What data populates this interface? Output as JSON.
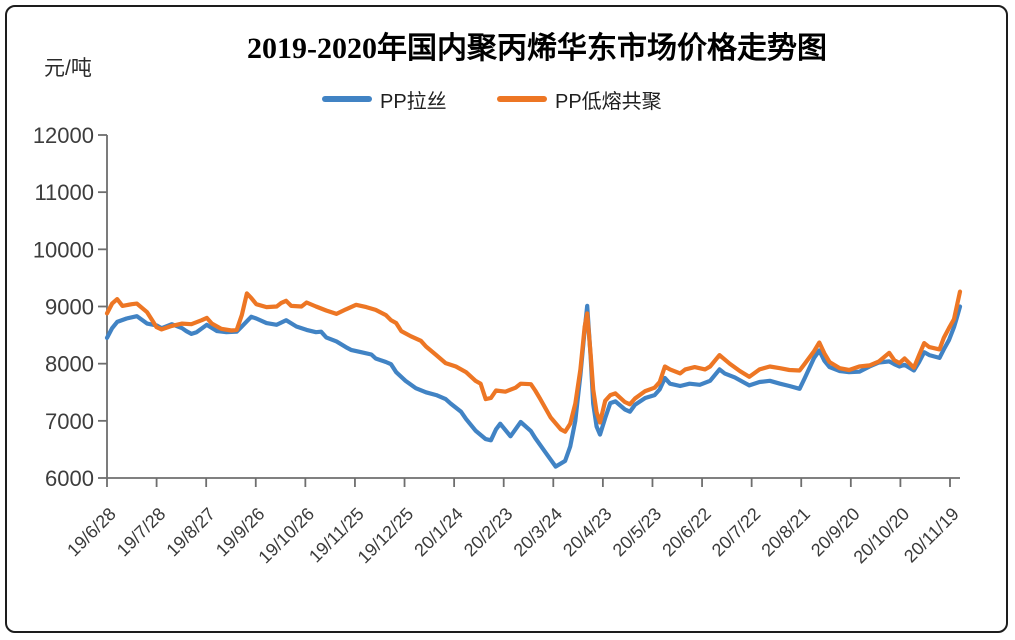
{
  "title": "2019-2020年国内聚丙烯华东市场价格走势图",
  "y_axis_unit": "元/吨",
  "colors": {
    "axis": "#6e6e6e",
    "pp_lasi": "#4183C4",
    "pp_dirong": "#ED7624"
  },
  "chart_data": {
    "type": "line",
    "title": "2019-2020年国内聚丙烯华东市场价格走势图",
    "ylabel": "元/吨",
    "ylim": [
      6000,
      12000
    ],
    "y_ticks": [
      6000,
      7000,
      8000,
      9000,
      10000,
      11000,
      12000
    ],
    "grid": false,
    "legend_position": "top",
    "x_tick_labels": [
      "19/6/28",
      "19/7/28",
      "19/8/27",
      "19/9/26",
      "19/10/26",
      "19/11/25",
      "19/12/25",
      "20/1/24",
      "20/2/23",
      "20/3/24",
      "20/4/23",
      "20/5/23",
      "20/6/22",
      "20/7/22",
      "20/8/21",
      "20/9/20",
      "20/10/20",
      "20/11/19"
    ],
    "series": [
      {
        "name": "PP拉丝",
        "color": "#4183C4",
        "points": [
          [
            0.0,
            8450
          ],
          [
            0.006,
            8620
          ],
          [
            0.012,
            8730
          ],
          [
            0.023,
            8790
          ],
          [
            0.035,
            8830
          ],
          [
            0.047,
            8700
          ],
          [
            0.058,
            8670
          ],
          [
            0.064,
            8620
          ],
          [
            0.076,
            8690
          ],
          [
            0.088,
            8620
          ],
          [
            0.093,
            8570
          ],
          [
            0.099,
            8520
          ],
          [
            0.105,
            8550
          ],
          [
            0.117,
            8680
          ],
          [
            0.129,
            8570
          ],
          [
            0.14,
            8550
          ],
          [
            0.152,
            8560
          ],
          [
            0.158,
            8650
          ],
          [
            0.169,
            8820
          ],
          [
            0.175,
            8790
          ],
          [
            0.187,
            8710
          ],
          [
            0.199,
            8680
          ],
          [
            0.21,
            8760
          ],
          [
            0.222,
            8650
          ],
          [
            0.234,
            8590
          ],
          [
            0.245,
            8550
          ],
          [
            0.251,
            8560
          ],
          [
            0.257,
            8460
          ],
          [
            0.269,
            8390
          ],
          [
            0.28,
            8290
          ],
          [
            0.286,
            8240
          ],
          [
            0.298,
            8200
          ],
          [
            0.31,
            8160
          ],
          [
            0.315,
            8090
          ],
          [
            0.327,
            8030
          ],
          [
            0.333,
            7990
          ],
          [
            0.339,
            7850
          ],
          [
            0.35,
            7700
          ],
          [
            0.362,
            7570
          ],
          [
            0.374,
            7500
          ],
          [
            0.386,
            7450
          ],
          [
            0.397,
            7380
          ],
          [
            0.403,
            7300
          ],
          [
            0.415,
            7160
          ],
          [
            0.421,
            7030
          ],
          [
            0.432,
            6830
          ],
          [
            0.444,
            6680
          ],
          [
            0.45,
            6660
          ],
          [
            0.456,
            6850
          ],
          [
            0.461,
            6950
          ],
          [
            0.473,
            6730
          ],
          [
            0.485,
            6980
          ],
          [
            0.497,
            6820
          ],
          [
            0.502,
            6700
          ],
          [
            0.514,
            6450
          ],
          [
            0.526,
            6200
          ],
          [
            0.537,
            6300
          ],
          [
            0.543,
            6550
          ],
          [
            0.549,
            7000
          ],
          [
            0.555,
            7800
          ],
          [
            0.56,
            8600
          ],
          [
            0.563,
            9010
          ],
          [
            0.567,
            8100
          ],
          [
            0.57,
            7300
          ],
          [
            0.574,
            6900
          ],
          [
            0.578,
            6760
          ],
          [
            0.584,
            7050
          ],
          [
            0.59,
            7310
          ],
          [
            0.596,
            7340
          ],
          [
            0.607,
            7200
          ],
          [
            0.613,
            7160
          ],
          [
            0.619,
            7280
          ],
          [
            0.631,
            7400
          ],
          [
            0.642,
            7450
          ],
          [
            0.648,
            7550
          ],
          [
            0.654,
            7750
          ],
          [
            0.66,
            7650
          ],
          [
            0.672,
            7610
          ],
          [
            0.683,
            7650
          ],
          [
            0.695,
            7630
          ],
          [
            0.707,
            7700
          ],
          [
            0.718,
            7900
          ],
          [
            0.724,
            7830
          ],
          [
            0.736,
            7760
          ],
          [
            0.748,
            7660
          ],
          [
            0.753,
            7620
          ],
          [
            0.765,
            7680
          ],
          [
            0.777,
            7700
          ],
          [
            0.789,
            7650
          ],
          [
            0.8,
            7610
          ],
          [
            0.812,
            7560
          ],
          [
            0.818,
            7750
          ],
          [
            0.829,
            8100
          ],
          [
            0.835,
            8230
          ],
          [
            0.841,
            8050
          ],
          [
            0.847,
            7940
          ],
          [
            0.859,
            7870
          ],
          [
            0.87,
            7850
          ],
          [
            0.882,
            7860
          ],
          [
            0.894,
            7950
          ],
          [
            0.905,
            8020
          ],
          [
            0.917,
            8040
          ],
          [
            0.923,
            7990
          ],
          [
            0.929,
            7950
          ],
          [
            0.935,
            7980
          ],
          [
            0.946,
            7880
          ],
          [
            0.952,
            8030
          ],
          [
            0.958,
            8200
          ],
          [
            0.964,
            8150
          ],
          [
            0.976,
            8100
          ],
          [
            0.981,
            8250
          ],
          [
            0.987,
            8410
          ],
          [
            0.993,
            8640
          ],
          [
            0.996,
            8790
          ],
          [
            1.0,
            9000
          ]
        ]
      },
      {
        "name": "PP低熔共聚",
        "color": "#ED7624",
        "points": [
          [
            0.0,
            8880
          ],
          [
            0.006,
            9050
          ],
          [
            0.012,
            9130
          ],
          [
            0.018,
            9010
          ],
          [
            0.029,
            9040
          ],
          [
            0.035,
            9050
          ],
          [
            0.047,
            8900
          ],
          [
            0.053,
            8760
          ],
          [
            0.058,
            8640
          ],
          [
            0.064,
            8600
          ],
          [
            0.076,
            8660
          ],
          [
            0.088,
            8700
          ],
          [
            0.099,
            8690
          ],
          [
            0.111,
            8760
          ],
          [
            0.117,
            8800
          ],
          [
            0.123,
            8700
          ],
          [
            0.134,
            8610
          ],
          [
            0.146,
            8580
          ],
          [
            0.152,
            8590
          ],
          [
            0.158,
            8850
          ],
          [
            0.164,
            9230
          ],
          [
            0.169,
            9150
          ],
          [
            0.175,
            9040
          ],
          [
            0.187,
            8990
          ],
          [
            0.199,
            9000
          ],
          [
            0.204,
            9060
          ],
          [
            0.21,
            9100
          ],
          [
            0.216,
            9010
          ],
          [
            0.228,
            9000
          ],
          [
            0.234,
            9070
          ],
          [
            0.245,
            9000
          ],
          [
            0.257,
            8930
          ],
          [
            0.269,
            8870
          ],
          [
            0.28,
            8950
          ],
          [
            0.292,
            9030
          ],
          [
            0.304,
            8990
          ],
          [
            0.315,
            8940
          ],
          [
            0.327,
            8850
          ],
          [
            0.333,
            8760
          ],
          [
            0.339,
            8710
          ],
          [
            0.345,
            8570
          ],
          [
            0.356,
            8480
          ],
          [
            0.368,
            8400
          ],
          [
            0.374,
            8300
          ],
          [
            0.386,
            8150
          ],
          [
            0.397,
            8010
          ],
          [
            0.409,
            7950
          ],
          [
            0.421,
            7850
          ],
          [
            0.432,
            7700
          ],
          [
            0.438,
            7650
          ],
          [
            0.444,
            7380
          ],
          [
            0.45,
            7400
          ],
          [
            0.456,
            7530
          ],
          [
            0.467,
            7510
          ],
          [
            0.479,
            7580
          ],
          [
            0.485,
            7650
          ],
          [
            0.497,
            7640
          ],
          [
            0.502,
            7530
          ],
          [
            0.508,
            7380
          ],
          [
            0.52,
            7060
          ],
          [
            0.532,
            6850
          ],
          [
            0.537,
            6810
          ],
          [
            0.543,
            6950
          ],
          [
            0.549,
            7300
          ],
          [
            0.555,
            7900
          ],
          [
            0.56,
            8650
          ],
          [
            0.563,
            8880
          ],
          [
            0.567,
            8150
          ],
          [
            0.57,
            7550
          ],
          [
            0.574,
            7150
          ],
          [
            0.578,
            6970
          ],
          [
            0.584,
            7350
          ],
          [
            0.59,
            7450
          ],
          [
            0.596,
            7480
          ],
          [
            0.607,
            7330
          ],
          [
            0.613,
            7290
          ],
          [
            0.619,
            7390
          ],
          [
            0.631,
            7520
          ],
          [
            0.642,
            7580
          ],
          [
            0.648,
            7680
          ],
          [
            0.654,
            7950
          ],
          [
            0.66,
            7900
          ],
          [
            0.672,
            7830
          ],
          [
            0.678,
            7900
          ],
          [
            0.689,
            7940
          ],
          [
            0.701,
            7900
          ],
          [
            0.707,
            7950
          ],
          [
            0.718,
            8150
          ],
          [
            0.73,
            8000
          ],
          [
            0.742,
            7870
          ],
          [
            0.753,
            7770
          ],
          [
            0.765,
            7900
          ],
          [
            0.777,
            7950
          ],
          [
            0.789,
            7920
          ],
          [
            0.8,
            7890
          ],
          [
            0.812,
            7880
          ],
          [
            0.818,
            8000
          ],
          [
            0.829,
            8220
          ],
          [
            0.835,
            8370
          ],
          [
            0.841,
            8180
          ],
          [
            0.847,
            8030
          ],
          [
            0.859,
            7920
          ],
          [
            0.87,
            7890
          ],
          [
            0.882,
            7950
          ],
          [
            0.894,
            7970
          ],
          [
            0.905,
            8040
          ],
          [
            0.917,
            8190
          ],
          [
            0.923,
            8060
          ],
          [
            0.929,
            8010
          ],
          [
            0.935,
            8090
          ],
          [
            0.946,
            7930
          ],
          [
            0.952,
            8150
          ],
          [
            0.958,
            8360
          ],
          [
            0.964,
            8290
          ],
          [
            0.976,
            8250
          ],
          [
            0.981,
            8450
          ],
          [
            0.987,
            8620
          ],
          [
            0.993,
            8780
          ],
          [
            1.0,
            9260
          ]
        ]
      }
    ]
  }
}
